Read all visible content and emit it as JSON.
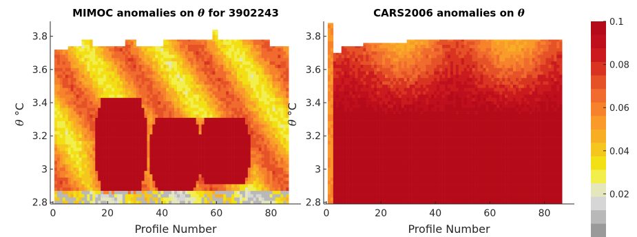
{
  "chart_data": [
    {
      "type": "heatmap",
      "title_prefix": "MIMOC anomalies on ",
      "title_symbol": "θ",
      "title_suffix": "  for 3902243",
      "xlabel": "Profile Number",
      "ylabel_symbol": "θ",
      "ylabel_unit": "°C",
      "xlim": [
        -1,
        91
      ],
      "ylim": [
        2.79,
        3.89
      ],
      "xticks": [
        "0",
        "20",
        "40",
        "60",
        "80"
      ],
      "xtick_values": [
        0,
        20,
        40,
        60,
        80
      ],
      "yticks": [
        "2.8",
        "3",
        "3.2",
        "3.4",
        "3.6",
        "3.8"
      ],
      "ytick_values": [
        2.8,
        3.0,
        3.2,
        3.4,
        3.6,
        3.8
      ],
      "profile_range": [
        1,
        86
      ],
      "top_theta_range": [
        3.7,
        3.75
      ],
      "hot_lobes": [
        {
          "center_profile": 25,
          "theta_range": [
            2.85,
            3.43
          ],
          "anomaly": 0.1
        },
        {
          "center_profile": 45,
          "theta_range": [
            2.87,
            3.3
          ],
          "anomaly": 0.1
        },
        {
          "center_profile": 63,
          "theta_range": [
            2.9,
            3.3
          ],
          "anomaly": 0.1
        }
      ],
      "background_anomaly_range": [
        0.03,
        0.07
      ]
    },
    {
      "type": "heatmap",
      "title_prefix": "CARS2006 anomalies on ",
      "title_symbol": "θ",
      "title_suffix": "",
      "xlabel": "Profile Number",
      "ylabel_symbol": "θ",
      "ylabel_unit": "°C",
      "xlim": [
        -1,
        91
      ],
      "ylim": [
        2.79,
        3.89
      ],
      "xticks": [
        "0",
        "20",
        "40",
        "60",
        "80"
      ],
      "xtick_values": [
        0,
        20,
        40,
        60,
        80
      ],
      "yticks": [
        "2.8",
        "3",
        "3.2",
        "3.4",
        "3.6",
        "3.8"
      ],
      "ytick_values": [
        2.8,
        3.0,
        3.2,
        3.4,
        3.6,
        3.8
      ],
      "profile_range": [
        1,
        86
      ],
      "top_theta_range": [
        3.7,
        3.8
      ],
      "saturated_region_theta": [
        2.8,
        3.3
      ],
      "anomaly_range": [
        0.05,
        0.1
      ]
    }
  ],
  "colorbar": {
    "ticks": [
      "0.1",
      "0.08",
      "0.06",
      "0.04",
      "0.02"
    ],
    "tick_values": [
      0.1,
      0.08,
      0.06,
      0.04,
      0.02
    ],
    "vmin": 0.0,
    "vmax": 0.1,
    "colors": [
      "#9a9a9a",
      "#b8b8b8",
      "#d6d6d6",
      "#e6e6bc",
      "#f2ef4d",
      "#f2df14",
      "#f5c61d",
      "#f8ae24",
      "#f99a2a",
      "#f6822c",
      "#f06b2d",
      "#e65227",
      "#d93421",
      "#cb1a1e",
      "#bf0e1c",
      "#b50a19"
    ]
  }
}
